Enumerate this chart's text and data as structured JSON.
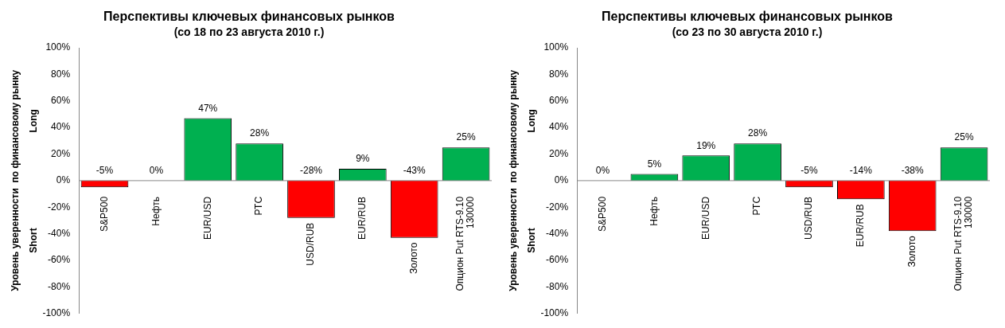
{
  "chart_data": [
    {
      "type": "bar",
      "title": "Перспективы ключевых финансовых рынков",
      "subtitle": "(со 18 по 23 августа 2010 г.)",
      "ylabel": "Уровень уверенности  по финансовому рынку",
      "annotations": [
        "Long",
        "Short"
      ],
      "categories": [
        "S&P500",
        "Нефть",
        "EUR/USD",
        "РТС",
        "USD/RUB",
        "EUR/RUB",
        "Золото",
        "Опцион Put RTS-9.10 130000"
      ],
      "values": [
        -5,
        0,
        47,
        28,
        -28,
        9,
        -43,
        25
      ],
      "colors": [
        "#ff0000",
        "#ff0000",
        "#00b050",
        "#00b050",
        "#ff0000",
        "#00b050",
        "#ff0000",
        "#00b050"
      ],
      "value_labels": [
        "-5%",
        "0%",
        "47%",
        "28%",
        "-28%",
        "9%",
        "-43%",
        "25%"
      ],
      "ylim": [
        -100,
        100
      ],
      "yticks": [
        {
          "value": -100,
          "label": "-100%"
        },
        {
          "value": -80,
          "label": "-80%"
        },
        {
          "value": -60,
          "label": "-60%"
        },
        {
          "value": -40,
          "label": "-40%"
        },
        {
          "value": -20,
          "label": "-20%"
        },
        {
          "value": 0,
          "label": "0%"
        },
        {
          "value": 20,
          "label": "20%"
        },
        {
          "value": 40,
          "label": "40%"
        },
        {
          "value": 60,
          "label": "60%"
        },
        {
          "value": 80,
          "label": "80%"
        },
        {
          "value": 100,
          "label": "100%"
        }
      ],
      "grid": false,
      "legend": false
    },
    {
      "type": "bar",
      "title": "Перспективы ключевых финансовых рынков",
      "subtitle": "(со 23 по 30 августа 2010 г.)",
      "ylabel": "Уровень уверенности  по финансовому рынку",
      "annotations": [
        "Long",
        "Short"
      ],
      "categories": [
        "S&P500",
        "Нефть",
        "EUR/USD",
        "РТС",
        "USD/RUB",
        "EUR/RUB",
        "Золото",
        "Опцион Put RTS-9.10 130000"
      ],
      "values": [
        0,
        5,
        19,
        28,
        -5,
        -14,
        -38,
        25
      ],
      "colors": [
        "#00b050",
        "#00b050",
        "#00b050",
        "#00b050",
        "#ff0000",
        "#ff0000",
        "#ff0000",
        "#00b050"
      ],
      "value_labels": [
        "0%",
        "5%",
        "19%",
        "28%",
        "-5%",
        "-14%",
        "-38%",
        "25%"
      ],
      "ylim": [
        -100,
        100
      ],
      "yticks": [
        {
          "value": -100,
          "label": "-100%"
        },
        {
          "value": -80,
          "label": "-80%"
        },
        {
          "value": -60,
          "label": "-60%"
        },
        {
          "value": -40,
          "label": "-40%"
        },
        {
          "value": -20,
          "label": "-20%"
        },
        {
          "value": 0,
          "label": "0%"
        },
        {
          "value": 20,
          "label": "20%"
        },
        {
          "value": 40,
          "label": "40%"
        },
        {
          "value": 60,
          "label": "60%"
        },
        {
          "value": 80,
          "label": "80%"
        },
        {
          "value": 100,
          "label": "100%"
        }
      ],
      "grid": false,
      "legend": false
    }
  ]
}
